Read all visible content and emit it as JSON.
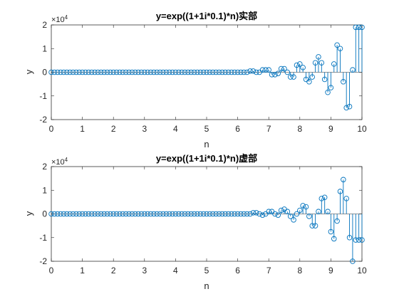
{
  "chart_data": [
    {
      "type": "stem",
      "title": "y=exp((1+1i*0.1)*n)实部",
      "xlabel": "n",
      "ylabel": "y",
      "xlim": [
        0,
        10
      ],
      "ylim": [
        -20000,
        20000
      ],
      "xticks": [
        "0",
        "1",
        "2",
        "3",
        "4",
        "5",
        "6",
        "7",
        "8",
        "9",
        "10"
      ],
      "yticks": [
        "-2",
        "-1",
        "0",
        "1",
        "2"
      ],
      "exponent_label": "×10",
      "exponent_power": "4",
      "grid": false,
      "color": "#0072BD",
      "n": [
        0,
        0.1,
        0.2,
        0.3,
        0.4,
        0.5,
        0.6,
        0.7,
        0.8,
        0.9,
        1,
        1.1,
        1.2,
        1.3,
        1.4,
        1.5,
        1.6,
        1.7,
        1.8,
        1.9,
        2,
        2.1,
        2.2,
        2.3,
        2.4,
        2.5,
        2.6,
        2.7,
        2.8,
        2.9,
        3,
        3.1,
        3.2,
        3.3,
        3.4,
        3.5,
        3.6,
        3.7,
        3.8,
        3.9,
        4,
        4.1,
        4.2,
        4.3,
        4.4,
        4.5,
        4.6,
        4.7,
        4.8,
        4.9,
        5,
        5.1,
        5.2,
        5.3,
        5.4,
        5.5,
        5.6,
        5.7,
        5.8,
        5.9,
        6,
        6.1,
        6.2,
        6.3,
        6.4,
        6.5,
        6.6,
        6.7,
        6.8,
        6.9,
        7,
        7.1,
        7.2,
        7.3,
        7.4,
        7.5,
        7.6,
        7.7,
        7.8,
        7.9,
        8,
        8.1,
        8.2,
        8.3,
        8.4,
        8.5,
        8.6,
        8.7,
        8.8,
        8.9,
        9,
        9.1,
        9.2,
        9.3,
        9.4,
        9.5,
        9.6,
        9.7,
        9.8,
        9.9,
        10
      ],
      "y": [
        0,
        0,
        0,
        0,
        0,
        0,
        0,
        0,
        0,
        0,
        0,
        0,
        0,
        0,
        0,
        0,
        0,
        0,
        0,
        0,
        0,
        0,
        0,
        0,
        0,
        0,
        0,
        0,
        0,
        0,
        0,
        0,
        0,
        0,
        0,
        0,
        0,
        0,
        0,
        0,
        0,
        0,
        0,
        0,
        0,
        0,
        0,
        0,
        0,
        0,
        0,
        0,
        0,
        0,
        0,
        0,
        0,
        0,
        0,
        0,
        0,
        0,
        0,
        0,
        500,
        500,
        0,
        0,
        1000,
        1000,
        1000,
        -1000,
        -1000,
        -500,
        1500,
        1500,
        0,
        -2000,
        -2000,
        3000,
        3500,
        2000,
        -3000,
        -4000,
        -2000,
        4000,
        6500,
        4000,
        -3000,
        -8500,
        -6500,
        3500,
        11500,
        10000,
        -4000,
        -15000,
        -14500,
        1000,
        19000,
        19000,
        19000
      ]
    },
    {
      "type": "stem",
      "title": "y=exp((1+1i*0.1)*n)虚部",
      "xlabel": "n",
      "ylabel": "y",
      "xlim": [
        0,
        10
      ],
      "ylim": [
        -20000,
        20000
      ],
      "xticks": [
        "0",
        "1",
        "2",
        "3",
        "4",
        "5",
        "6",
        "7",
        "8",
        "9",
        "10"
      ],
      "yticks": [
        "-2",
        "-1",
        "0",
        "1",
        "2"
      ],
      "exponent_label": "×10",
      "exponent_power": "4",
      "grid": false,
      "color": "#0072BD",
      "n": [
        0,
        0.1,
        0.2,
        0.3,
        0.4,
        0.5,
        0.6,
        0.7,
        0.8,
        0.9,
        1,
        1.1,
        1.2,
        1.3,
        1.4,
        1.5,
        1.6,
        1.7,
        1.8,
        1.9,
        2,
        2.1,
        2.2,
        2.3,
        2.4,
        2.5,
        2.6,
        2.7,
        2.8,
        2.9,
        3,
        3.1,
        3.2,
        3.3,
        3.4,
        3.5,
        3.6,
        3.7,
        3.8,
        3.9,
        4,
        4.1,
        4.2,
        4.3,
        4.4,
        4.5,
        4.6,
        4.7,
        4.8,
        4.9,
        5,
        5.1,
        5.2,
        5.3,
        5.4,
        5.5,
        5.6,
        5.7,
        5.8,
        5.9,
        6,
        6.1,
        6.2,
        6.3,
        6.4,
        6.5,
        6.6,
        6.7,
        6.8,
        6.9,
        7,
        7.1,
        7.2,
        7.3,
        7.4,
        7.5,
        7.6,
        7.7,
        7.8,
        7.9,
        8,
        8.1,
        8.2,
        8.3,
        8.4,
        8.5,
        8.6,
        8.7,
        8.8,
        8.9,
        9,
        9.1,
        9.2,
        9.3,
        9.4,
        9.5,
        9.6,
        9.7,
        9.8,
        9.9,
        10
      ],
      "y": [
        0,
        0,
        0,
        0,
        0,
        0,
        0,
        0,
        0,
        0,
        0,
        0,
        0,
        0,
        0,
        0,
        0,
        0,
        0,
        0,
        0,
        0,
        0,
        0,
        0,
        0,
        0,
        0,
        0,
        0,
        0,
        0,
        0,
        0,
        0,
        0,
        0,
        0,
        0,
        0,
        0,
        0,
        0,
        0,
        0,
        0,
        0,
        0,
        0,
        0,
        0,
        0,
        0,
        0,
        0,
        0,
        0,
        0,
        0,
        0,
        0,
        0,
        0,
        0,
        0,
        500,
        500,
        0,
        -500,
        0,
        1000,
        1000,
        0,
        -500,
        1500,
        2000,
        1000,
        -1000,
        -2500,
        0,
        1500,
        3500,
        3000,
        -1000,
        -5000,
        -5000,
        1000,
        6500,
        7000,
        1000,
        -7500,
        -10500,
        -3000,
        9500,
        14500,
        6500,
        -10000,
        -20000,
        -11000,
        -11000,
        -11000
      ]
    }
  ]
}
